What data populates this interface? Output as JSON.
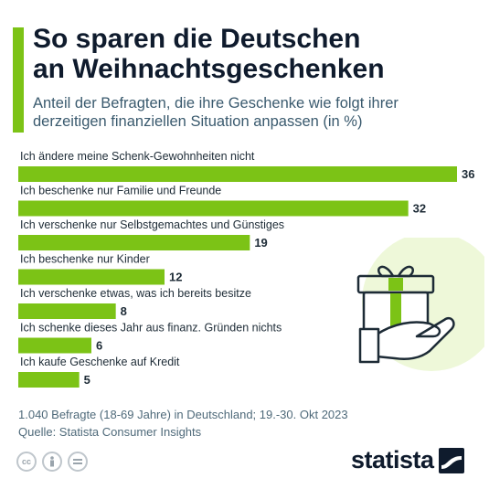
{
  "title_lines": [
    "So sparen die Deutschen",
    "an Weihnachtsgeschenken"
  ],
  "subtitle_lines": [
    "Anteil der Befragten, die ihre Geschenke wie folgt ihrer",
    "derzeitigen finanziellen Situation anpassen (in %)"
  ],
  "footnote": {
    "line1": "1.040 Befragte (18-69 Jahre) in Deutschland; 19.-30. Okt 2023",
    "line2": "Quelle: Statista Consumer Insights"
  },
  "brand": {
    "name": "statista"
  },
  "colors": {
    "bar": "#7cc316",
    "accent": "#7cc316",
    "title": "#0f1b2d",
    "subtitle": "#3a5a6e",
    "gift_bg": "#eef8d9"
  },
  "icons": [
    "gift-in-hand-icon",
    "creative-commons-icon",
    "attribution-icon",
    "no-derivatives-icon",
    "statista-logo-icon"
  ],
  "chart_data": {
    "type": "bar",
    "orientation": "horizontal",
    "categories": [
      "Ich ändere meine Schenk-Gewohnheiten nicht",
      "Ich beschenke nur Familie und Freunde",
      "Ich verschenke nur Selbstgemachtes und Günstiges",
      "Ich beschenke nur Kinder",
      "Ich verschenke etwas, was ich bereits besitze",
      "Ich schenke dieses Jahr aus finanz. Gründen nichts",
      "Ich kaufe Geschenke auf Kredit"
    ],
    "values": [
      36,
      32,
      19,
      12,
      8,
      6,
      5
    ],
    "value_labels": [
      "36",
      "32",
      "19",
      "12",
      "8",
      "6",
      "5"
    ],
    "xlim": [
      0,
      36
    ],
    "grid": false,
    "legend": "none"
  }
}
